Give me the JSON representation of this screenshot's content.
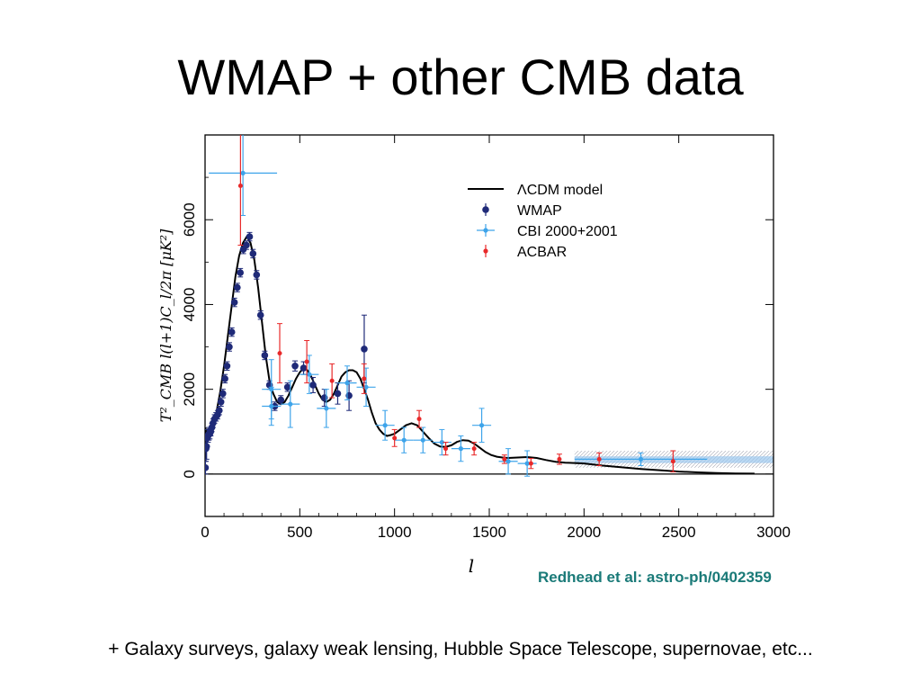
{
  "slide": {
    "title": "WMAP + other CMB data",
    "citation": "Redhead et al: astro-ph/0402359",
    "footnote": "+ Galaxy surveys, galaxy weak lensing, Hubble Space Telescope, supernovae, etc..."
  },
  "chart_data": {
    "type": "scatter",
    "title": "",
    "xlabel": "l",
    "ylabel": "T²_CMB l(l+1)C_l/2π [μK²]",
    "xlim": [
      0,
      3000
    ],
    "ylim": [
      -1000,
      8000
    ],
    "x_ticks": [
      0,
      500,
      1000,
      1500,
      2000,
      2500,
      3000
    ],
    "y_ticks": [
      0,
      2000,
      4000,
      6000
    ],
    "grid": false,
    "legend": "top-right",
    "legend_entries": [
      "ΛCDM model",
      "WMAP",
      "CBI 2000+2001",
      "ACBAR"
    ],
    "colors": {
      "model": "#000000",
      "wmap": "#1f2a78",
      "cbi": "#3ea4ea",
      "acbar": "#e8292a",
      "band": "#9bc8ee"
    },
    "model": {
      "name": "ΛCDM model",
      "x": [
        2,
        10,
        20,
        40,
        60,
        80,
        100,
        120,
        140,
        160,
        180,
        200,
        220,
        240,
        260,
        280,
        300,
        320,
        340,
        360,
        380,
        400,
        420,
        440,
        460,
        480,
        500,
        520,
        540,
        560,
        580,
        600,
        620,
        640,
        660,
        680,
        700,
        720,
        740,
        760,
        780,
        800,
        820,
        840,
        860,
        880,
        900,
        920,
        940,
        960,
        980,
        1000,
        1030,
        1060,
        1090,
        1120,
        1150,
        1180,
        1210,
        1240,
        1270,
        1300,
        1330,
        1360,
        1390,
        1420,
        1450,
        1480,
        1510,
        1540,
        1570,
        1600,
        1650,
        1700,
        1750,
        1800,
        1850,
        1900,
        1950,
        2000,
        2100,
        2200,
        2300,
        2400,
        2500,
        2600,
        2700,
        2800,
        2900
      ],
      "y": [
        1100,
        850,
        860,
        1100,
        1450,
        1950,
        2550,
        3250,
        3950,
        4650,
        5150,
        5450,
        5600,
        5450,
        5050,
        4400,
        3600,
        2800,
        2200,
        1900,
        1700,
        1650,
        1700,
        1850,
        2050,
        2250,
        2400,
        2500,
        2450,
        2300,
        2100,
        1900,
        1750,
        1700,
        1750,
        1900,
        2100,
        2300,
        2400,
        2450,
        2450,
        2400,
        2250,
        2000,
        1750,
        1450,
        1200,
        1050,
        950,
        900,
        920,
        950,
        1050,
        1150,
        1200,
        1150,
        1000,
        850,
        720,
        650,
        640,
        680,
        760,
        800,
        790,
        720,
        620,
        520,
        450,
        410,
        390,
        380,
        390,
        400,
        380,
        330,
        290,
        270,
        260,
        250,
        200,
        160,
        120,
        90,
        60,
        40,
        25,
        15,
        10
      ]
    },
    "series": [
      {
        "name": "WMAP",
        "x": [
          2,
          5,
          8,
          12,
          16,
          20,
          25,
          30,
          36,
          42,
          50,
          58,
          66,
          75,
          84,
          94,
          105,
          116,
          128,
          141,
          155,
          170,
          186,
          202,
          218,
          235,
          253,
          272,
          293,
          315,
          340,
          368,
          400,
          435,
          475,
          520,
          570,
          630,
          700,
          760,
          840
        ],
        "y": [
          150,
          600,
          650,
          850,
          900,
          950,
          950,
          1000,
          1100,
          1200,
          1300,
          1350,
          1400,
          1500,
          1700,
          1900,
          2250,
          2550,
          3000,
          3350,
          4050,
          4400,
          4750,
          5300,
          5400,
          5600,
          5200,
          4700,
          3750,
          2800,
          2100,
          1600,
          1750,
          2050,
          2550,
          2500,
          2100,
          1800,
          1900,
          1850,
          2950
        ],
        "err": [
          150,
          300,
          300,
          200,
          150,
          150,
          120,
          100,
          100,
          100,
          100,
          100,
          100,
          100,
          100,
          100,
          100,
          100,
          100,
          100,
          100,
          100,
          100,
          100,
          100,
          100,
          100,
          100,
          100,
          100,
          100,
          100,
          100,
          100,
          120,
          150,
          180,
          200,
          250,
          350,
          800
        ]
      },
      {
        "name": "CBI 2000+2001",
        "x": [
          200,
          350,
          350,
          450,
          550,
          640,
          750,
          850,
          950,
          1050,
          1150,
          1250,
          1350,
          1460,
          1600,
          1700,
          2300
        ],
        "y": [
          7100,
          2000,
          1600,
          1650,
          2350,
          1550,
          2150,
          2050,
          1150,
          800,
          800,
          750,
          600,
          1150,
          300,
          250,
          350
        ],
        "err": [
          1000,
          700,
          450,
          550,
          450,
          450,
          400,
          450,
          350,
          300,
          300,
          300,
          300,
          400,
          300,
          300,
          150
        ]
      },
      {
        "name": "ACBAR",
        "x": [
          187,
          394,
          537,
          670,
          839,
          1000,
          1130,
          1270,
          1420,
          1580,
          1720,
          1870,
          2080,
          2470
        ],
        "y": [
          6800,
          2850,
          2650,
          2200,
          2250,
          850,
          1300,
          600,
          600,
          350,
          250,
          350,
          350,
          300
        ],
        "err": [
          1400,
          700,
          500,
          400,
          350,
          200,
          200,
          150,
          150,
          100,
          120,
          120,
          150,
          250
        ]
      }
    ]
  }
}
